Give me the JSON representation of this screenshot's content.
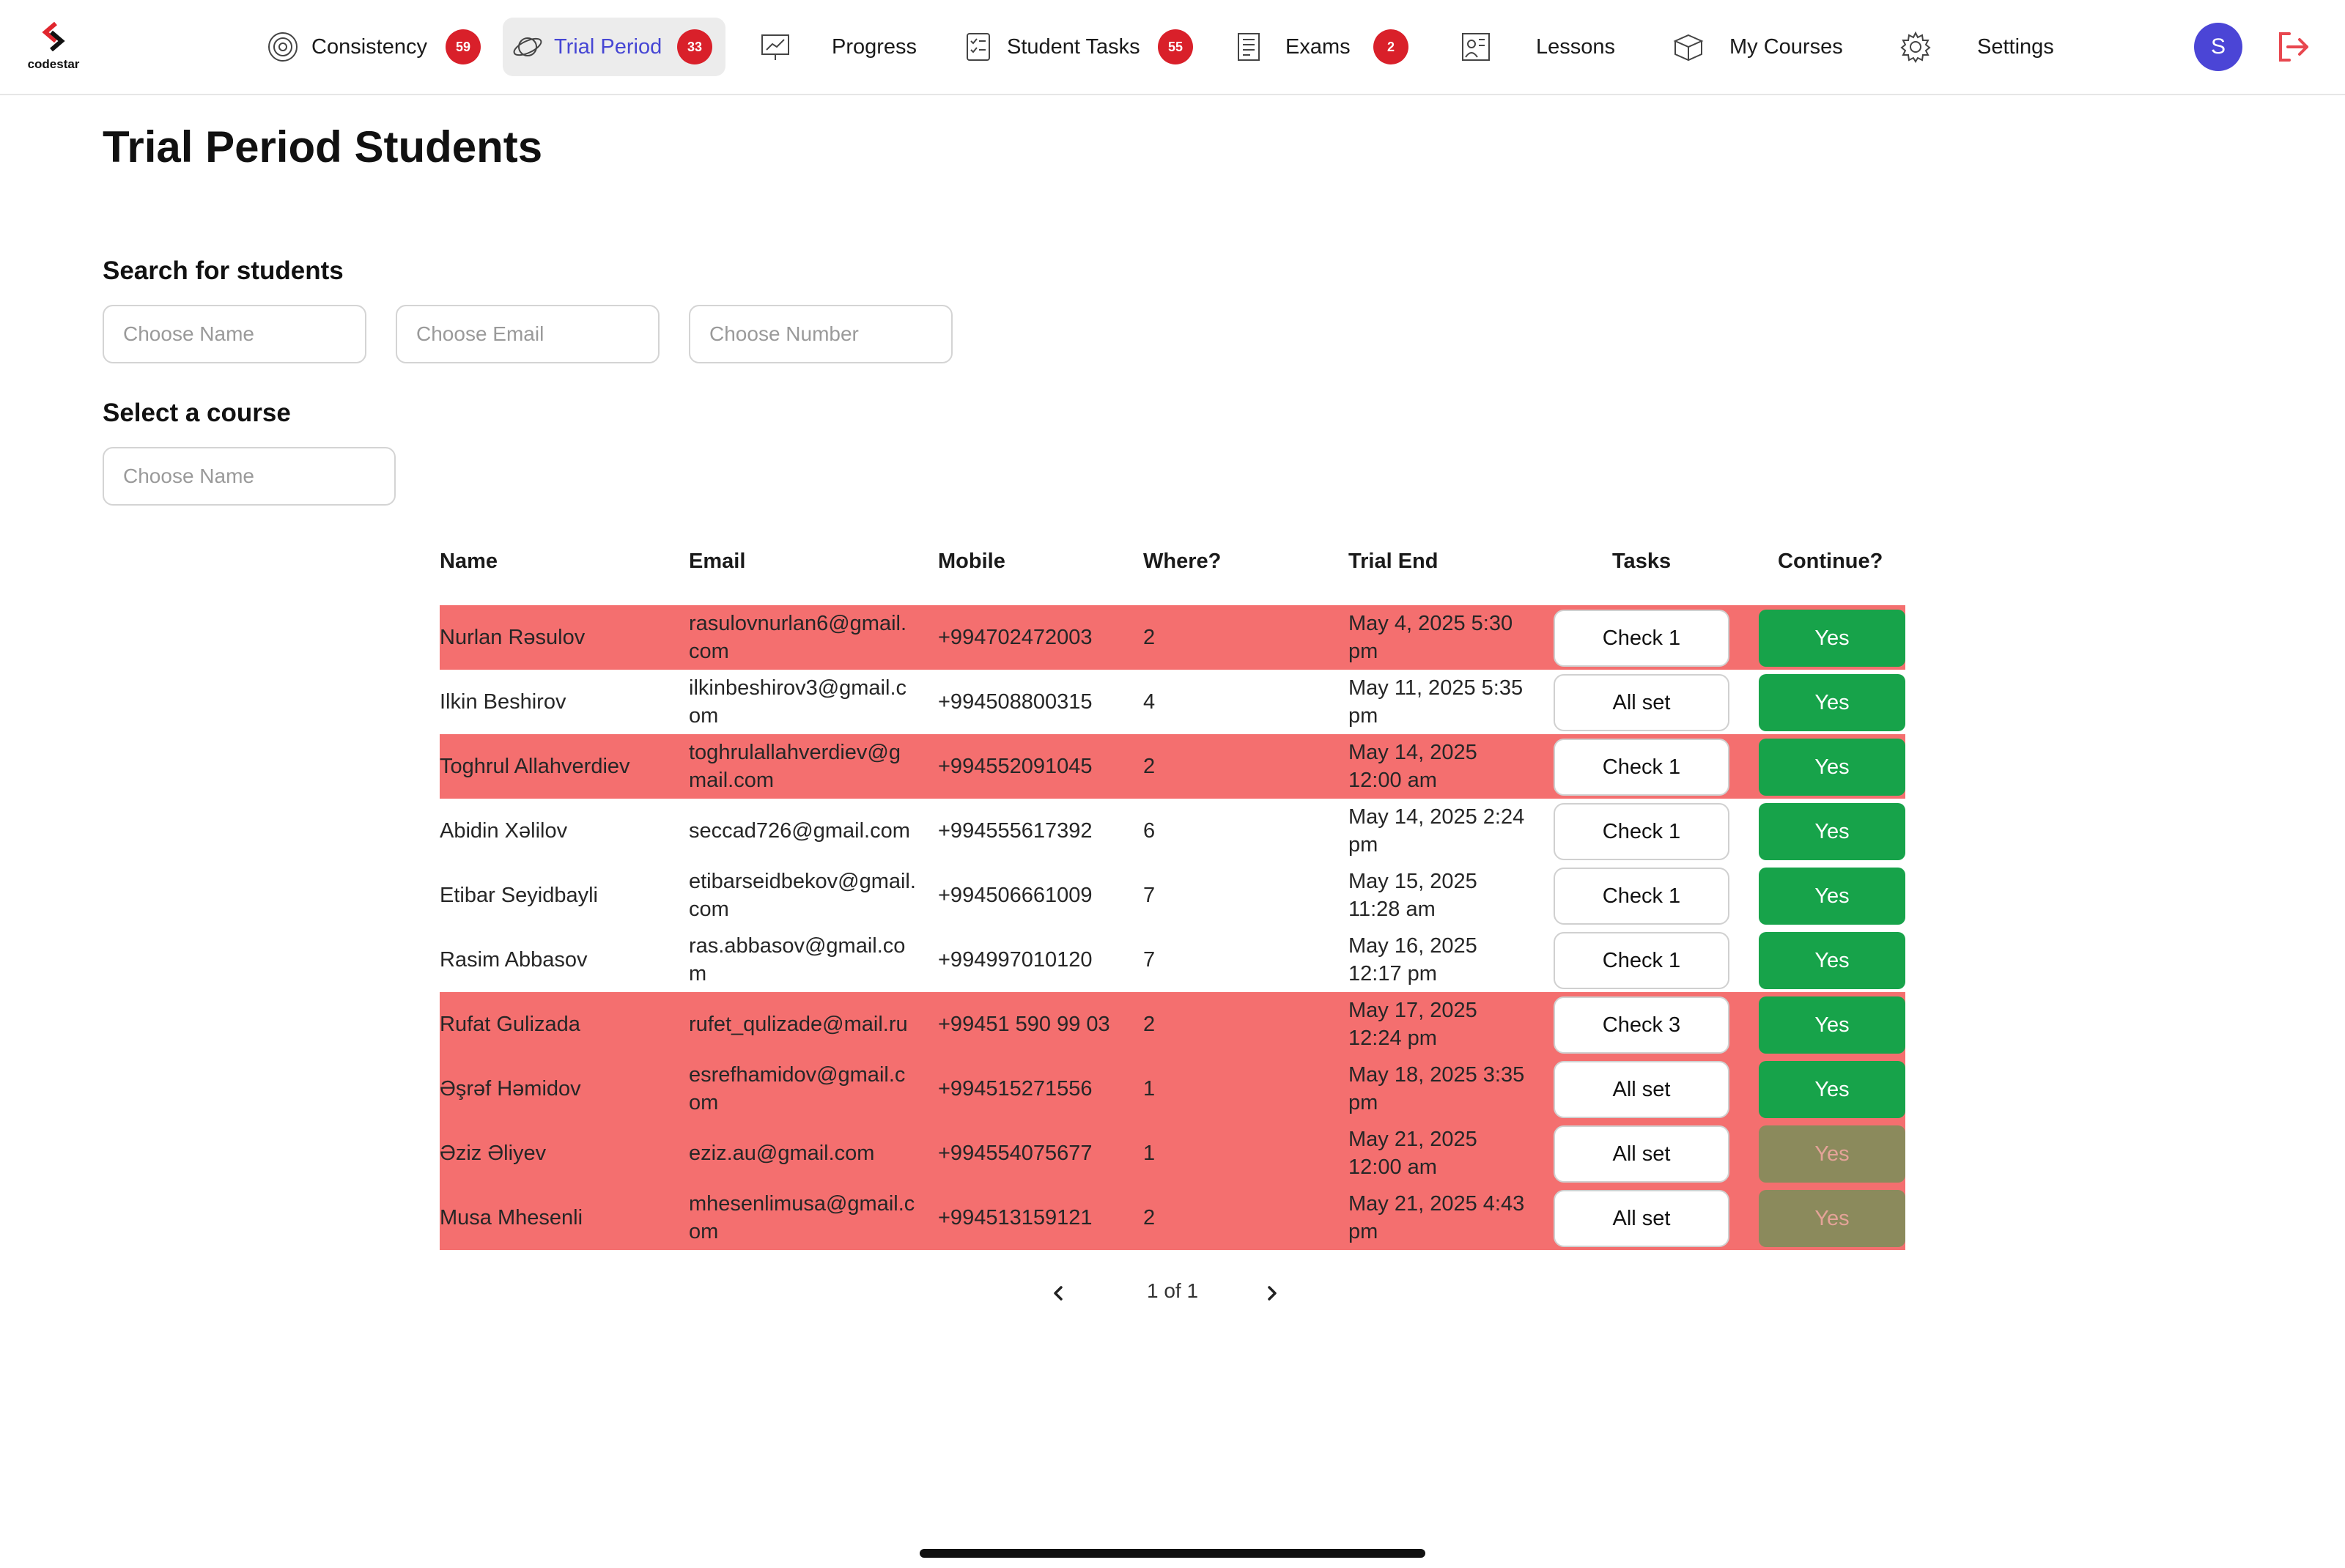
{
  "brand": {
    "name": "codestar",
    "accent": "#d9202a"
  },
  "nav": {
    "items": [
      {
        "key": "consistency",
        "label": "Consistency",
        "icon": "target-icon",
        "badge": "59",
        "active": false
      },
      {
        "key": "trial",
        "label": "Trial Period",
        "icon": "planet-icon",
        "badge": "33",
        "active": true
      },
      {
        "key": "progress",
        "label": "Progress",
        "icon": "presentation-icon",
        "badge": null,
        "active": false
      },
      {
        "key": "tasks",
        "label": "Student Tasks",
        "icon": "checklist-icon",
        "badge": "55",
        "active": false
      },
      {
        "key": "exams",
        "label": "Exams",
        "icon": "notebook-icon",
        "badge": "2",
        "active": false
      },
      {
        "key": "lessons",
        "label": "Lessons",
        "icon": "lesson-board-icon",
        "badge": null,
        "active": false
      },
      {
        "key": "courses",
        "label": "My Courses",
        "icon": "open-box-icon",
        "badge": null,
        "active": false
      },
      {
        "key": "settings",
        "label": "Settings",
        "icon": "gear-icon",
        "badge": null,
        "active": false
      }
    ],
    "avatar_initial": "S"
  },
  "page": {
    "title": "Trial Period Students",
    "search_label": "Search for students",
    "search": {
      "name_placeholder": "Choose Name",
      "email_placeholder": "Choose Email",
      "number_placeholder": "Choose Number"
    },
    "course_label": "Select a course",
    "course_placeholder": "Choose Name"
  },
  "table": {
    "columns": [
      "Name",
      "Email",
      "Mobile",
      "Where?",
      "Trial End",
      "Tasks",
      "Continue?"
    ],
    "rows": [
      {
        "name": "Nurlan Rəsulov",
        "email": "rasulovnurlan6@gmail.com",
        "mobile": "+994702472003",
        "where": "2",
        "trial_end": "May 4, 2025 5:30 pm",
        "tasks": "Check 1",
        "continue": "Yes",
        "highlight": true,
        "continue_enabled": true
      },
      {
        "name": "Ilkin Beshirov",
        "email": "ilkinbeshirov3@gmail.com",
        "mobile": "+994508800315",
        "where": "4",
        "trial_end": "May 11, 2025 5:35 pm",
        "tasks": "All set",
        "continue": "Yes",
        "highlight": false,
        "continue_enabled": true
      },
      {
        "name": "Toghrul Allahverdiev",
        "email": "toghrulallahverdiev@gmail.com",
        "mobile": "+994552091045",
        "where": "2",
        "trial_end": "May 14, 2025 12:00 am",
        "tasks": "Check 1",
        "continue": "Yes",
        "highlight": true,
        "continue_enabled": true
      },
      {
        "name": "Abidin Xəlilov",
        "email": "seccad726@gmail.com",
        "mobile": "+994555617392",
        "where": "6",
        "trial_end": "May 14, 2025 2:24 pm",
        "tasks": "Check 1",
        "continue": "Yes",
        "highlight": false,
        "continue_enabled": true
      },
      {
        "name": "Etibar Seyidbayli",
        "email": "etibarseidbekov@gmail.com",
        "mobile": "+994506661009",
        "where": "7",
        "trial_end": "May 15, 2025 11:28 am",
        "tasks": "Check 1",
        "continue": "Yes",
        "highlight": false,
        "continue_enabled": true
      },
      {
        "name": "Rasim Abbasov",
        "email": "ras.abbasov@gmail.com",
        "mobile": "+994997010120",
        "where": "7",
        "trial_end": "May 16, 2025 12:17 pm",
        "tasks": "Check 1",
        "continue": "Yes",
        "highlight": false,
        "continue_enabled": true
      },
      {
        "name": "Rufat Gulizada",
        "email": "rufet_qulizade@mail.ru",
        "mobile": "+99451 590 99 03",
        "where": "2",
        "trial_end": "May 17, 2025 12:24 pm",
        "tasks": "Check 3",
        "continue": "Yes",
        "highlight": true,
        "continue_enabled": true
      },
      {
        "name": "Əşrəf Həmidov",
        "email": "esrefhamidov@gmail.com",
        "mobile": "+994515271556",
        "where": "1",
        "trial_end": "May 18, 2025 3:35 pm",
        "tasks": "All set",
        "continue": "Yes",
        "highlight": true,
        "continue_enabled": true
      },
      {
        "name": "Əziz Əliyev",
        "email": "eziz.au@gmail.com",
        "mobile": "+994554075677",
        "where": "1",
        "trial_end": "May 21, 2025 12:00 am",
        "tasks": "All set",
        "continue": "Yes",
        "highlight": true,
        "continue_enabled": false
      },
      {
        "name": "Musa  Mhesenli",
        "email": "mhesenlimusa@gmail.com",
        "mobile": "+994513159121",
        "where": "2",
        "trial_end": "May 21, 2025 4:43 pm",
        "tasks": "All set",
        "continue": "Yes",
        "highlight": true,
        "continue_enabled": false
      }
    ]
  },
  "pagination": {
    "text": "1 of 1"
  },
  "colors": {
    "row_highlight": "#f46f6f",
    "continue_on": "#17a34a",
    "continue_off": "#8b8a5c",
    "active_nav_text": "#4646d4",
    "avatar": "#4b45d6",
    "logout": "#e8474f"
  }
}
